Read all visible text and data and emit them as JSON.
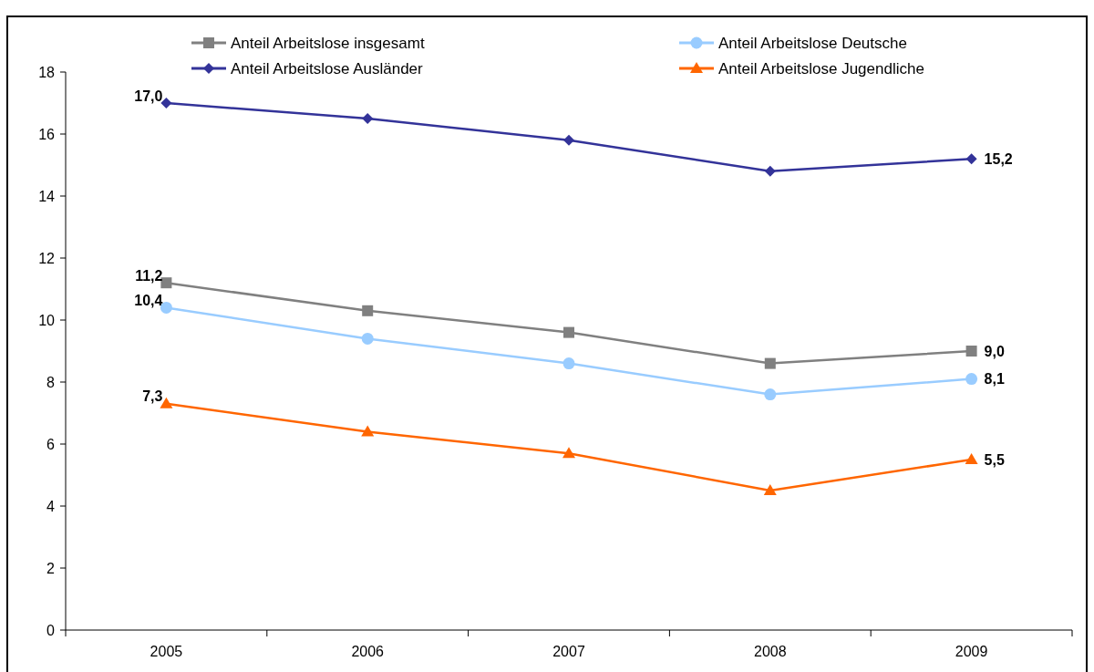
{
  "chart_data": {
    "type": "line",
    "categories": [
      "2005",
      "2006",
      "2007",
      "2008",
      "2009"
    ],
    "series": [
      {
        "name": "Anteil Arbeitslose insgesamt",
        "color": "#808080",
        "marker": "square",
        "values": [
          11.2,
          10.3,
          9.6,
          8.6,
          9.0
        ],
        "value_labels": [
          "11,2",
          null,
          null,
          null,
          "9,0"
        ]
      },
      {
        "name": "Anteil Arbeitslose Deutsche",
        "color": "#99ccff",
        "marker": "circle",
        "values": [
          10.4,
          9.4,
          8.6,
          7.6,
          8.1
        ],
        "value_labels": [
          "10,4",
          null,
          null,
          null,
          "8,1"
        ]
      },
      {
        "name": "Anteil Arbeitslose Ausländer",
        "color": "#333399",
        "marker": "diamond",
        "values": [
          17.0,
          16.5,
          15.8,
          14.8,
          15.2
        ],
        "value_labels": [
          "17,0",
          null,
          null,
          null,
          "15,2"
        ]
      },
      {
        "name": "Anteil Arbeitslose Jugendliche",
        "color": "#ff6600",
        "marker": "triangle",
        "values": [
          7.3,
          6.4,
          5.7,
          4.5,
          5.5
        ],
        "value_labels": [
          "7,3",
          null,
          null,
          null,
          "5,5"
        ]
      }
    ],
    "ylim": [
      0,
      18
    ],
    "yticks": [
      0,
      2,
      4,
      6,
      8,
      10,
      12,
      14,
      16,
      18
    ],
    "grid": false,
    "legend": "top",
    "line_style": "solid"
  }
}
